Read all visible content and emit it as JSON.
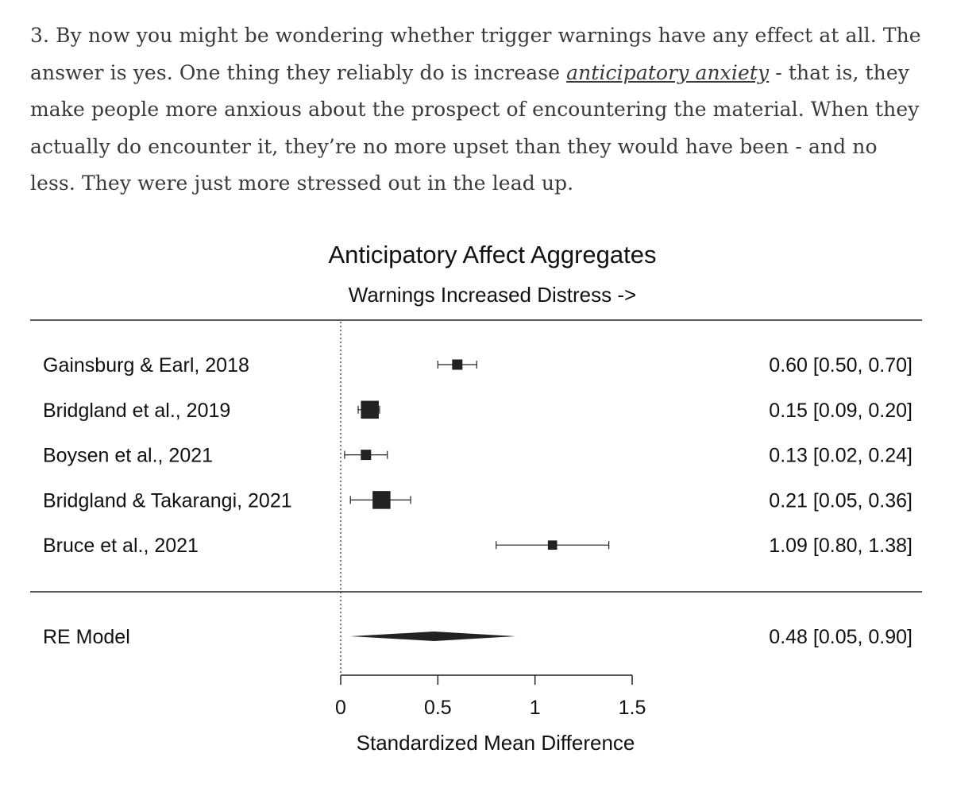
{
  "text": {
    "p1": "3. By now you might be wondering whether trigger warnings have any effect at all. The answer is yes. One thing they reliably do is increase ",
    "link": "anticipatory anxiety",
    "p2": " - that is, they make people more anxious about the prospect of encountering the material. When they actually do encounter it, they’re no more upset than they would have been - and no less. They were just more stressed out in the lead up."
  },
  "chart_data": {
    "type": "forest",
    "title": "Anticipatory Affect Aggregates",
    "subtitle": "Warnings Increased Distress ->",
    "xlabel": "Standardized Mean Difference",
    "xlim": [
      0,
      1.5
    ],
    "xticks": [
      0,
      0.5,
      1,
      1.5
    ],
    "xtick_labels": [
      "0",
      "0.5",
      "1",
      "1.5"
    ],
    "studies": [
      {
        "label": "Gainsburg & Earl, 2018",
        "estimate": 0.6,
        "lower": 0.5,
        "upper": 0.7,
        "weight": 1,
        "text": "0.60 [0.50, 0.70]"
      },
      {
        "label": "Bridgland et al., 2019",
        "estimate": 0.15,
        "lower": 0.09,
        "upper": 0.2,
        "weight": 3,
        "text": "0.15 [0.09, 0.20]"
      },
      {
        "label": "Boysen et al., 2021",
        "estimate": 0.13,
        "lower": 0.02,
        "upper": 0.24,
        "weight": 1,
        "text": "0.13 [0.02, 0.24]"
      },
      {
        "label": "Bridgland & Takarangi, 2021",
        "estimate": 0.21,
        "lower": 0.05,
        "upper": 0.36,
        "weight": 3,
        "text": "0.21 [0.05, 0.36]"
      },
      {
        "label": "Bruce et al., 2021",
        "estimate": 1.09,
        "lower": 0.8,
        "upper": 1.38,
        "weight": 0.8,
        "text": "1.09 [0.80, 1.38]"
      }
    ],
    "summary": {
      "label": "RE Model",
      "estimate": 0.48,
      "lower": 0.05,
      "upper": 0.9,
      "text": "0.48 [0.05, 0.90]"
    }
  }
}
